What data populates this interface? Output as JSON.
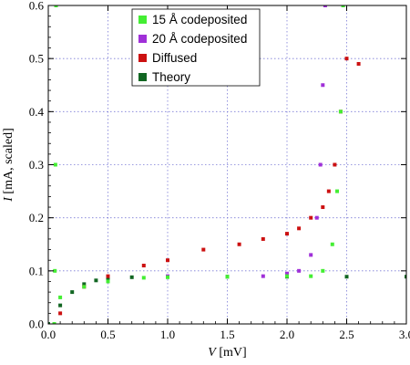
{
  "chart_data": {
    "type": "scatter",
    "xlabel_var": "V",
    "xlabel_unit": " [mV]",
    "ylabel_var": "I",
    "ylabel_unit": " [mA, scaled]",
    "xlim": [
      0,
      3.0
    ],
    "ylim": [
      0,
      0.6
    ],
    "x_ticks": [
      "0.0",
      "0.5",
      "1.0",
      "1.5",
      "2.0",
      "2.5",
      "3.0"
    ],
    "y_ticks": [
      "0.0",
      "0.1",
      "0.2",
      "0.3",
      "0.4",
      "0.5",
      "0.6"
    ],
    "grid": "dotted",
    "legend_position": "top-center",
    "series": [
      {
        "name": "15 Å codeposited",
        "color": "#44ee33",
        "marker": "square",
        "points": [
          [
            0.05,
            0.0
          ],
          [
            0.055,
            0.1
          ],
          [
            0.06,
            0.3
          ],
          [
            0.065,
            0.6
          ],
          [
            0.1,
            0.05
          ],
          [
            0.3,
            0.07
          ],
          [
            0.5,
            0.08
          ],
          [
            0.8,
            0.087
          ],
          [
            1.0,
            0.088
          ],
          [
            1.5,
            0.089
          ],
          [
            2.0,
            0.09
          ],
          [
            2.2,
            0.09
          ],
          [
            2.3,
            0.1
          ],
          [
            2.38,
            0.15
          ],
          [
            2.42,
            0.25
          ],
          [
            2.45,
            0.4
          ],
          [
            2.47,
            0.6
          ]
        ]
      },
      {
        "name": "20 Å codeposited",
        "color": "#a030d8",
        "marker": "square",
        "points": [
          [
            1.0,
            0.09
          ],
          [
            1.8,
            0.09
          ],
          [
            2.0,
            0.095
          ],
          [
            2.1,
            0.1
          ],
          [
            2.2,
            0.13
          ],
          [
            2.25,
            0.2
          ],
          [
            2.28,
            0.3
          ],
          [
            2.3,
            0.45
          ],
          [
            2.32,
            0.6
          ]
        ]
      },
      {
        "name": "Diffused",
        "color": "#cc1111",
        "marker": "square",
        "points": [
          [
            0.1,
            0.02
          ],
          [
            0.3,
            0.07
          ],
          [
            0.5,
            0.09
          ],
          [
            0.8,
            0.11
          ],
          [
            1.0,
            0.12
          ],
          [
            1.3,
            0.14
          ],
          [
            1.6,
            0.15
          ],
          [
            1.8,
            0.16
          ],
          [
            2.0,
            0.17
          ],
          [
            2.1,
            0.18
          ],
          [
            2.2,
            0.2
          ],
          [
            2.3,
            0.22
          ],
          [
            2.35,
            0.25
          ],
          [
            2.4,
            0.3
          ],
          [
            2.45,
            0.4
          ],
          [
            2.5,
            0.5
          ],
          [
            2.6,
            0.49
          ]
        ]
      },
      {
        "name": "Theory",
        "color": "#116622",
        "marker": "square",
        "points": [
          [
            0.0,
            0.0
          ],
          [
            0.1,
            0.035
          ],
          [
            0.2,
            0.06
          ],
          [
            0.3,
            0.075
          ],
          [
            0.4,
            0.082
          ],
          [
            0.5,
            0.086
          ],
          [
            0.7,
            0.088
          ],
          [
            1.0,
            0.089
          ],
          [
            1.5,
            0.089
          ],
          [
            2.0,
            0.089
          ],
          [
            2.5,
            0.089
          ],
          [
            3.0,
            0.089
          ]
        ]
      }
    ]
  }
}
